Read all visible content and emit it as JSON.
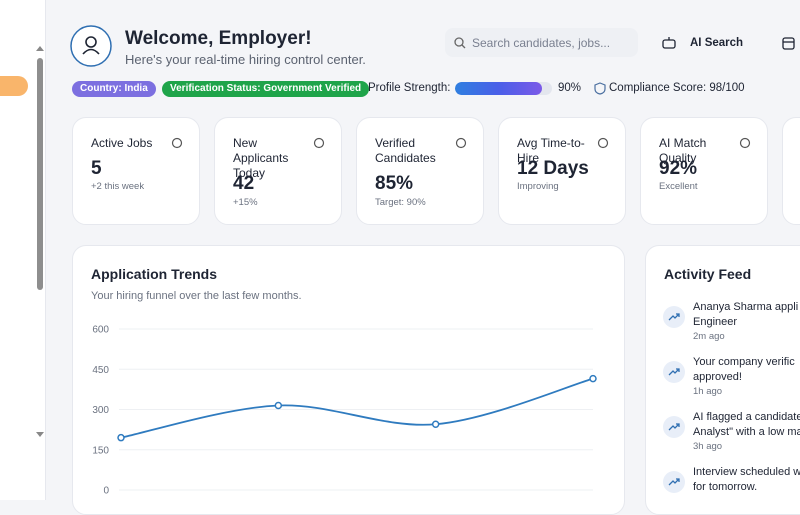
{
  "header": {
    "title": "Welcome, Employer!",
    "subtitle": "Here's your real-time hiring control center.",
    "search_placeholder": "Search candidates, jobs...",
    "ai_search": "AI Search"
  },
  "status": {
    "country": "Country: India",
    "verification": "Verification Status: Government Verified",
    "profile_strength": {
      "label": "Profile Strength:",
      "value": 90,
      "value_label": "90%"
    },
    "compliance": "Compliance Score: 98/100"
  },
  "cards": [
    {
      "title": "Active Jobs",
      "value": "5",
      "note": "+2 this week"
    },
    {
      "title": "New Applicants Today",
      "value": "42",
      "note": "+15%"
    },
    {
      "title": "Verified Candidates",
      "value": "85%",
      "note": "Target: 90%"
    },
    {
      "title": "Avg Time-to-Hire",
      "value": "12 Days",
      "note": "Improving"
    },
    {
      "title": "AI Match Quality",
      "value": "92%",
      "note": "Excellent"
    }
  ],
  "chart_data": {
    "type": "line",
    "title": "Application Trends",
    "subtitle": "Your hiring funnel over the last few months.",
    "categories": [
      null,
      null,
      null,
      null
    ],
    "values": [
      195,
      315,
      245,
      415
    ],
    "color": "#2f7bbf",
    "ylim": [
      0,
      600
    ],
    "yticks": [
      0,
      150,
      300,
      450,
      600
    ],
    "grid": true
  },
  "activity": {
    "title": "Activity Feed",
    "items": [
      {
        "lines": [
          "Ananya Sharma appli",
          "Engineer"
        ],
        "time": "2m ago"
      },
      {
        "lines": [
          "Your company verific",
          "approved!"
        ],
        "time": "1h ago"
      },
      {
        "lines": [
          "AI flagged a candidate",
          "Analyst\" with a low ma"
        ],
        "time": "3h ago"
      },
      {
        "lines": [
          "Interview scheduled w",
          "for tomorrow."
        ],
        "time": null
      }
    ]
  }
}
